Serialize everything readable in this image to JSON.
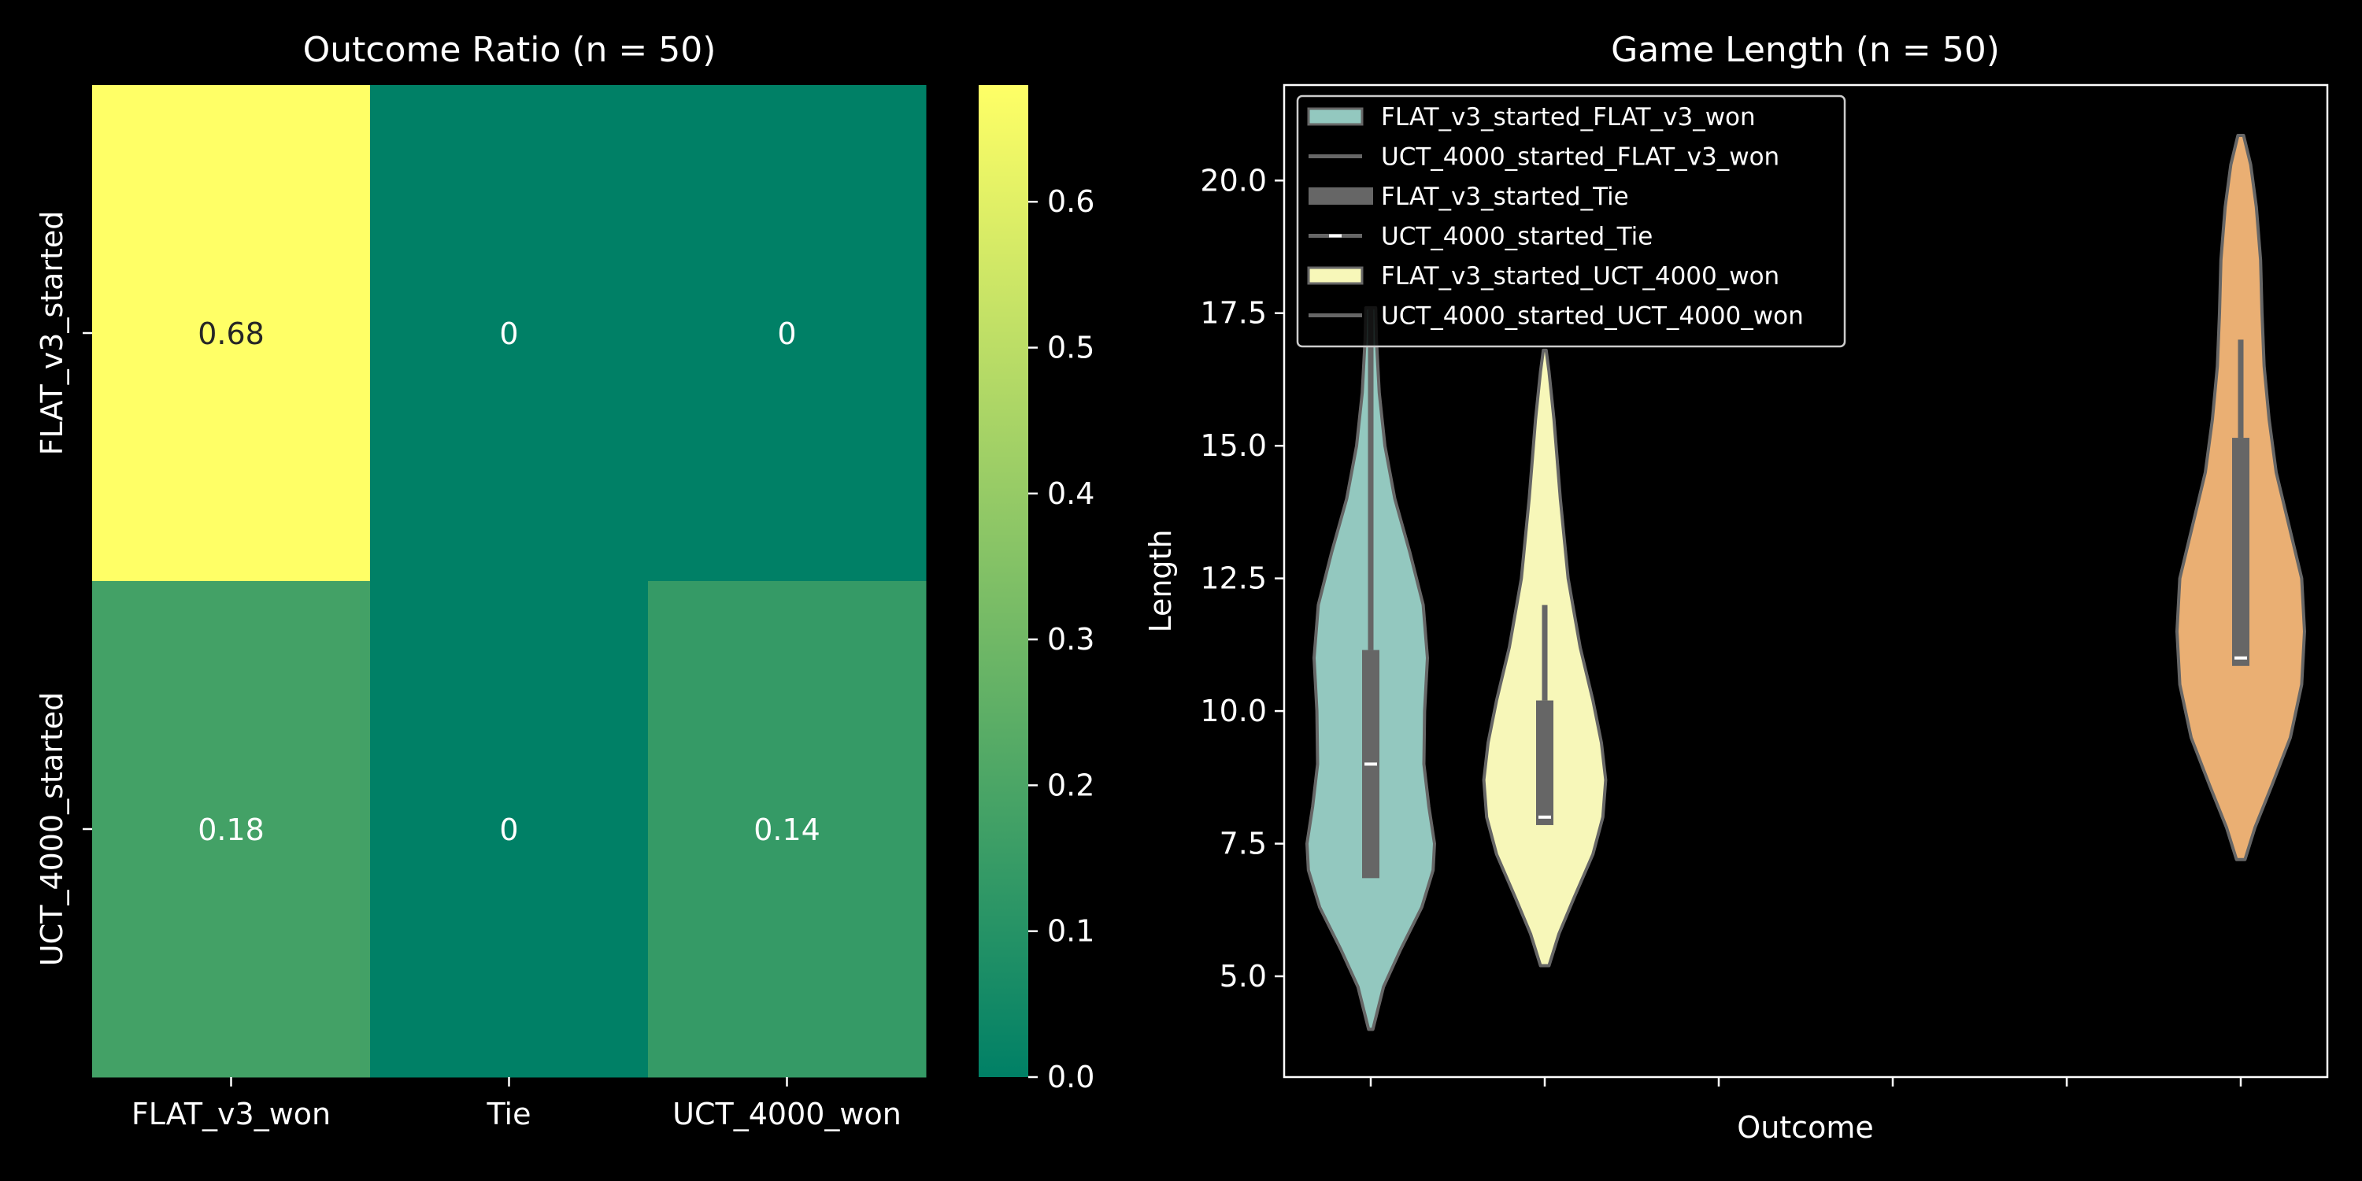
{
  "chart_data": [
    {
      "type": "heatmap",
      "title": "Outcome Ratio (n = 50)",
      "xlabel": "",
      "ylabel": "",
      "x_categories": [
        "FLAT_v3_won",
        "Tie",
        "UCT_4000_won"
      ],
      "y_categories": [
        "FLAT_v3_started",
        "UCT_4000_started"
      ],
      "values": [
        [
          0.68,
          0,
          0
        ],
        [
          0.18,
          0,
          0.14
        ]
      ],
      "cell_labels": [
        [
          "0.68",
          "0",
          "0"
        ],
        [
          "0.18",
          "0",
          "0.14"
        ]
      ],
      "colormap": "summer",
      "colorbar": {
        "vmin": 0,
        "vmax": 0.68,
        "ticks": [
          0,
          0.1,
          0.2,
          0.3,
          0.4,
          0.5,
          0.6
        ],
        "tick_labels": [
          "0.0",
          "0.1",
          "0.2",
          "0.3",
          "0.4",
          "0.5",
          "0.6"
        ]
      }
    },
    {
      "type": "violin",
      "title": "Game Length (n = 50)",
      "xlabel": "Outcome",
      "ylabel": "Length",
      "ylim": [
        3.1,
        21.8
      ],
      "y_ticks": [
        5,
        7.5,
        10,
        12.5,
        15,
        17.5,
        20
      ],
      "y_tick_labels": [
        "5.0",
        "7.5",
        "10.0",
        "12.5",
        "15.0",
        "17.5",
        "20.0"
      ],
      "x_positions": 6,
      "legend": {
        "placement": "upper left",
        "entries": [
          "FLAT_v3_started_FLAT_v3_won",
          "UCT_4000_started_FLAT_v3_won",
          "FLAT_v3_started_Tie",
          "UCT_4000_started_Tie",
          "FLAT_v3_started_UCT_4000_won",
          "UCT_4000_started_UCT_4000_won"
        ]
      },
      "series": [
        {
          "position": 0,
          "color": "#93c8bf",
          "min": 4.0,
          "q1": 6.85,
          "median": 9.0,
          "q3": 11.15,
          "whisker_high": 17.6,
          "max": 17.6,
          "density": [
            [
              4.0,
              0.03
            ],
            [
              4.8,
              0.18
            ],
            [
              5.5,
              0.42
            ],
            [
              6.3,
              0.72
            ],
            [
              7.0,
              0.88
            ],
            [
              7.5,
              0.9
            ],
            [
              8.2,
              0.82
            ],
            [
              9.0,
              0.75
            ],
            [
              10.0,
              0.76
            ],
            [
              11.0,
              0.8
            ],
            [
              12.0,
              0.74
            ],
            [
              13.0,
              0.55
            ],
            [
              14.0,
              0.34
            ],
            [
              15.0,
              0.2
            ],
            [
              16.0,
              0.12
            ],
            [
              17.0,
              0.08
            ],
            [
              17.6,
              0.07
            ]
          ]
        },
        {
          "position": 1,
          "color": "#f7f7b9",
          "min": 5.2,
          "q1": 7.85,
          "median": 8.0,
          "q3": 10.2,
          "whisker_high": 12.0,
          "max": 16.8,
          "density": [
            [
              5.2,
              0.06
            ],
            [
              5.8,
              0.2
            ],
            [
              6.5,
              0.42
            ],
            [
              7.3,
              0.68
            ],
            [
              8.0,
              0.82
            ],
            [
              8.7,
              0.86
            ],
            [
              9.4,
              0.8
            ],
            [
              10.2,
              0.68
            ],
            [
              11.2,
              0.5
            ],
            [
              12.5,
              0.33
            ],
            [
              14.0,
              0.22
            ],
            [
              15.5,
              0.13
            ],
            [
              16.4,
              0.06
            ],
            [
              16.8,
              0.02
            ]
          ]
        },
        {
          "position": 5,
          "color": "#eaaf73",
          "min": 7.2,
          "q1": 10.85,
          "median": 11.0,
          "q3": 15.15,
          "whisker_high": 17.0,
          "max": 20.85,
          "density": [
            [
              7.2,
              0.06
            ],
            [
              7.8,
              0.2
            ],
            [
              8.6,
              0.44
            ],
            [
              9.5,
              0.7
            ],
            [
              10.5,
              0.86
            ],
            [
              11.5,
              0.9
            ],
            [
              12.5,
              0.86
            ],
            [
              13.5,
              0.68
            ],
            [
              14.5,
              0.5
            ],
            [
              15.5,
              0.4
            ],
            [
              16.5,
              0.33
            ],
            [
              17.5,
              0.3
            ],
            [
              18.5,
              0.28
            ],
            [
              19.5,
              0.22
            ],
            [
              20.3,
              0.14
            ],
            [
              20.85,
              0.04
            ]
          ]
        }
      ]
    }
  ]
}
